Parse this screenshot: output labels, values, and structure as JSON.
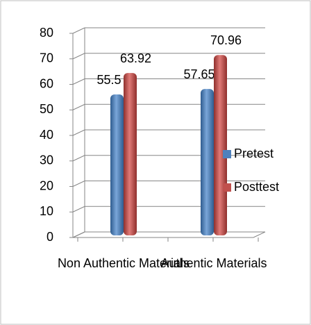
{
  "chart_data": {
    "type": "bar",
    "categories": [
      "Non Authentic Materials",
      "Authentic Materials"
    ],
    "series": [
      {
        "name": "Pretest",
        "color": "#4f81bd",
        "values": [
          55.5,
          57.65
        ]
      },
      {
        "name": "Posttest",
        "color": "#c0504d",
        "values": [
          63.92,
          70.96
        ]
      }
    ],
    "ylim": [
      0,
      80
    ],
    "yticks": [
      0,
      10,
      20,
      30,
      40,
      50,
      60,
      70,
      80
    ],
    "grid": true,
    "legend": "right"
  }
}
